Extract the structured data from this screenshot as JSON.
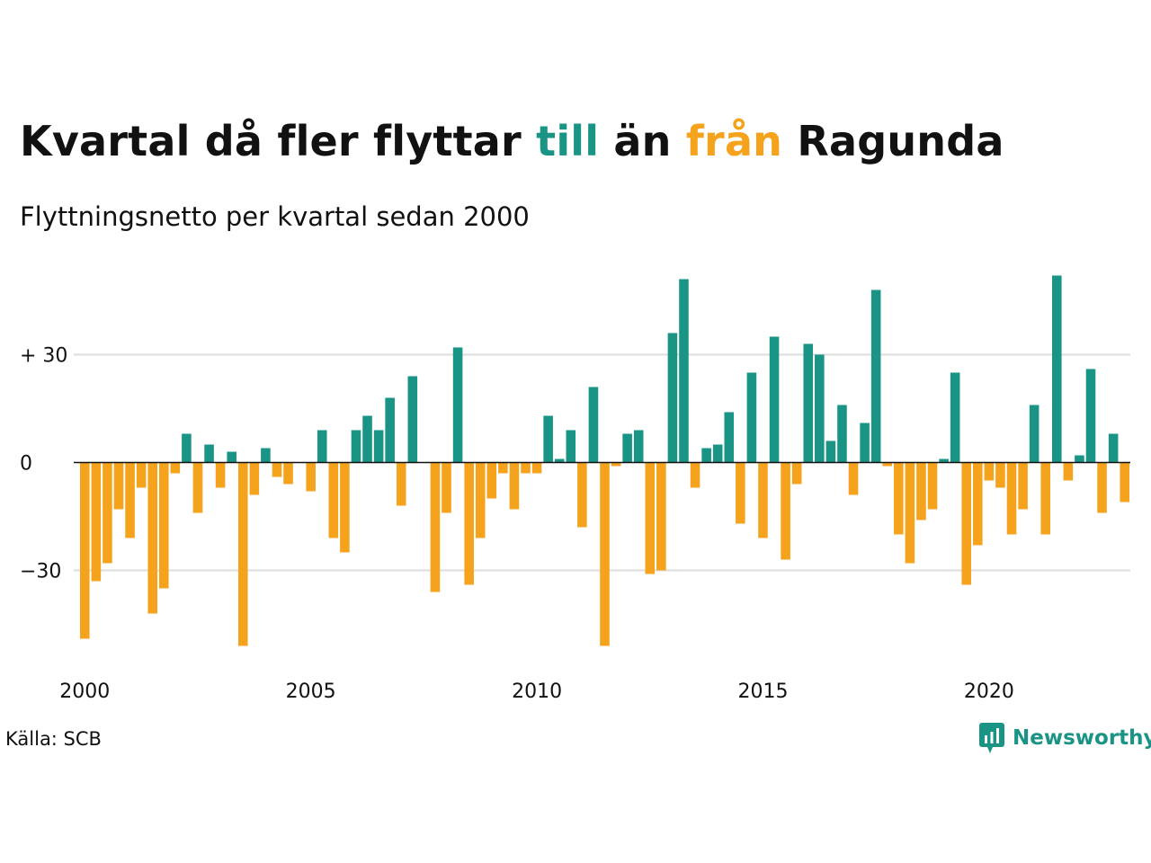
{
  "title": {
    "part1": "Kvartal då fler flyttar ",
    "part2": "till",
    "part3": " än ",
    "part4": "från",
    "part5": " Ragunda"
  },
  "subtitle": "Flyttningsnetto per kvartal sedan 2000",
  "source": "Källa: SCB",
  "brand": {
    "name": "Newsworthy",
    "icon": "newsworthy-logo-icon"
  },
  "colors": {
    "positive": "#1a9484",
    "negative": "#f5a31c",
    "grid": "#dddddd",
    "text": "#111111"
  },
  "chart_data": {
    "type": "bar",
    "x_start": "2000 Q1",
    "x_step": "quarter",
    "values": [
      -49,
      -33,
      -28,
      -13,
      -21,
      -7,
      -42,
      -35,
      -3,
      8,
      -14,
      5,
      -7,
      3,
      -51,
      -9,
      4,
      -4,
      -6,
      0,
      -8,
      9,
      -21,
      -25,
      9,
      13,
      9,
      18,
      -12,
      24,
      0,
      -36,
      -14,
      32,
      -34,
      -21,
      -10,
      -3,
      -13,
      -3,
      -3,
      13,
      1,
      9,
      -18,
      21,
      -51,
      -1,
      8,
      9,
      -31,
      -30,
      36,
      51,
      -7,
      4,
      5,
      14,
      -17,
      25,
      -21,
      35,
      -27,
      -6,
      33,
      30,
      6,
      16,
      -9,
      11,
      48,
      -1,
      -20,
      -28,
      -16,
      -13,
      1,
      25,
      -34,
      -23,
      -5,
      -7,
      -20,
      -13,
      16,
      -20,
      52,
      -5,
      2,
      26,
      -14,
      8,
      -11
    ],
    "x_ticks": [
      {
        "value": 2000,
        "label": "2000"
      },
      {
        "value": 2005,
        "label": "2005"
      },
      {
        "value": 2010,
        "label": "2010"
      },
      {
        "value": 2015,
        "label": "2015"
      },
      {
        "value": 2020,
        "label": "2020"
      }
    ],
    "y_ticks": [
      {
        "value": 30,
        "label": "+ 30"
      },
      {
        "value": 0,
        "label": "0"
      },
      {
        "value": -30,
        "label": "−30"
      }
    ],
    "ylim": [
      -51,
      52
    ],
    "grid": true,
    "legend": "none"
  }
}
